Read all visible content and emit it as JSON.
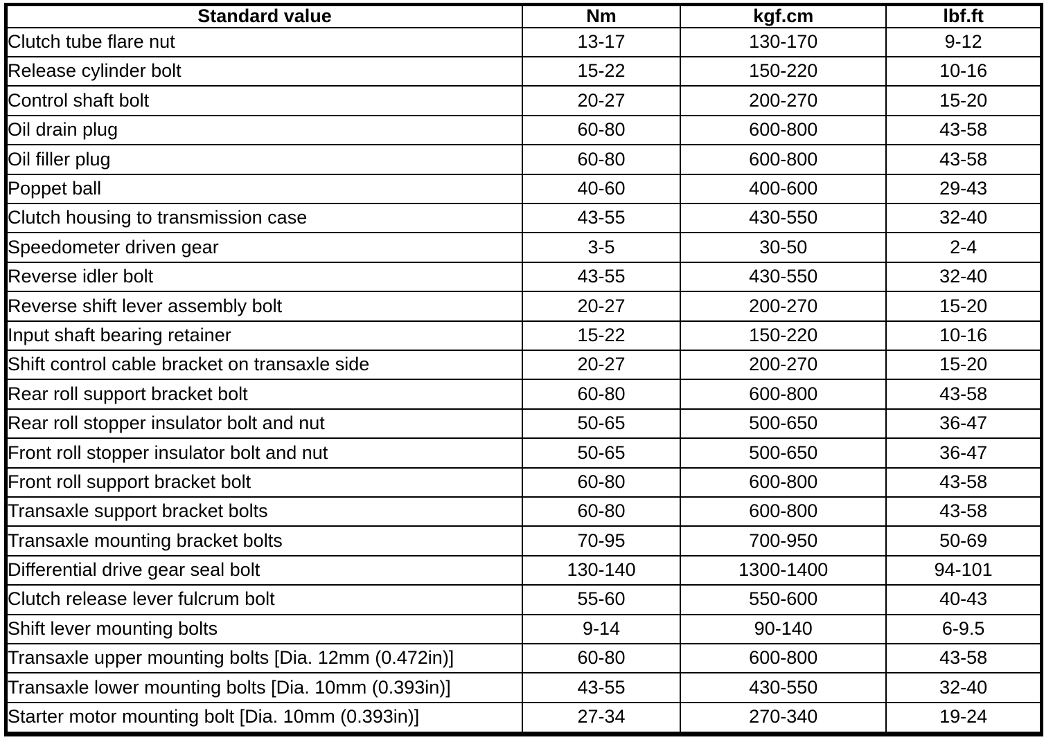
{
  "table": {
    "columns": [
      {
        "label": "Standard value"
      },
      {
        "label": "Nm"
      },
      {
        "label": "kgf.cm"
      },
      {
        "label": "lbf.ft"
      }
    ],
    "rows": [
      {
        "name": "Clutch tube flare nut",
        "nm": "13-17",
        "kgf_cm": "130-170",
        "lbf_ft": "9-12"
      },
      {
        "name": "Release cylinder bolt",
        "nm": "15-22",
        "kgf_cm": "150-220",
        "lbf_ft": "10-16"
      },
      {
        "name": "Control shaft bolt",
        "nm": "20-27",
        "kgf_cm": "200-270",
        "lbf_ft": "15-20"
      },
      {
        "name": "Oil drain plug",
        "nm": "60-80",
        "kgf_cm": "600-800",
        "lbf_ft": "43-58"
      },
      {
        "name": "Oil filler plug",
        "nm": "60-80",
        "kgf_cm": "600-800",
        "lbf_ft": "43-58"
      },
      {
        "name": "Poppet ball",
        "nm": "40-60",
        "kgf_cm": "400-600",
        "lbf_ft": "29-43"
      },
      {
        "name": "Clutch housing to transmission case",
        "nm": "43-55",
        "kgf_cm": "430-550",
        "lbf_ft": "32-40"
      },
      {
        "name": "Speedometer driven gear",
        "nm": "3-5",
        "kgf_cm": "30-50",
        "lbf_ft": "2-4"
      },
      {
        "name": "Reverse idler bolt",
        "nm": "43-55",
        "kgf_cm": "430-550",
        "lbf_ft": "32-40"
      },
      {
        "name": "Reverse shift lever assembly bolt",
        "nm": "20-27",
        "kgf_cm": "200-270",
        "lbf_ft": "15-20"
      },
      {
        "name": "Input shaft bearing retainer",
        "nm": "15-22",
        "kgf_cm": "150-220",
        "lbf_ft": "10-16"
      },
      {
        "name": "Shift control cable bracket on transaxle side",
        "nm": "20-27",
        "kgf_cm": "200-270",
        "lbf_ft": "15-20"
      },
      {
        "name": "Rear roll support bracket bolt",
        "nm": "60-80",
        "kgf_cm": "600-800",
        "lbf_ft": "43-58"
      },
      {
        "name": "Rear roll stopper insulator bolt and nut",
        "nm": "50-65",
        "kgf_cm": "500-650",
        "lbf_ft": "36-47"
      },
      {
        "name": "Front roll stopper insulator bolt and nut",
        "nm": "50-65",
        "kgf_cm": "500-650",
        "lbf_ft": "36-47"
      },
      {
        "name": "Front roll support bracket bolt",
        "nm": "60-80",
        "kgf_cm": "600-800",
        "lbf_ft": "43-58"
      },
      {
        "name": "Transaxle support bracket bolts",
        "nm": "60-80",
        "kgf_cm": "600-800",
        "lbf_ft": "43-58"
      },
      {
        "name": "Transaxle mounting bracket bolts",
        "nm": "70-95",
        "kgf_cm": "700-950",
        "lbf_ft": "50-69"
      },
      {
        "name": "Differential drive gear seal bolt",
        "nm": "130-140",
        "kgf_cm": "1300-1400",
        "lbf_ft": "94-101"
      },
      {
        "name": "Clutch release lever fulcrum bolt",
        "nm": "55-60",
        "kgf_cm": "550-600",
        "lbf_ft": "40-43"
      },
      {
        "name": "Shift lever mounting bolts",
        "nm": "9-14",
        "kgf_cm": "90-140",
        "lbf_ft": "6-9.5"
      },
      {
        "name": "Transaxle upper mounting bolts [Dia. 12mm (0.472in)]",
        "nm": "60-80",
        "kgf_cm": "600-800",
        "lbf_ft": "43-58"
      },
      {
        "name": "Transaxle lower mounting bolts [Dia. 10mm (0.393in)]",
        "nm": "43-55",
        "kgf_cm": "430-550",
        "lbf_ft": "32-40"
      },
      {
        "name": "Starter motor mounting bolt [Dia. 10mm (0.393in)]",
        "nm": "27-34",
        "kgf_cm": "270-340",
        "lbf_ft": "19-24"
      }
    ]
  }
}
